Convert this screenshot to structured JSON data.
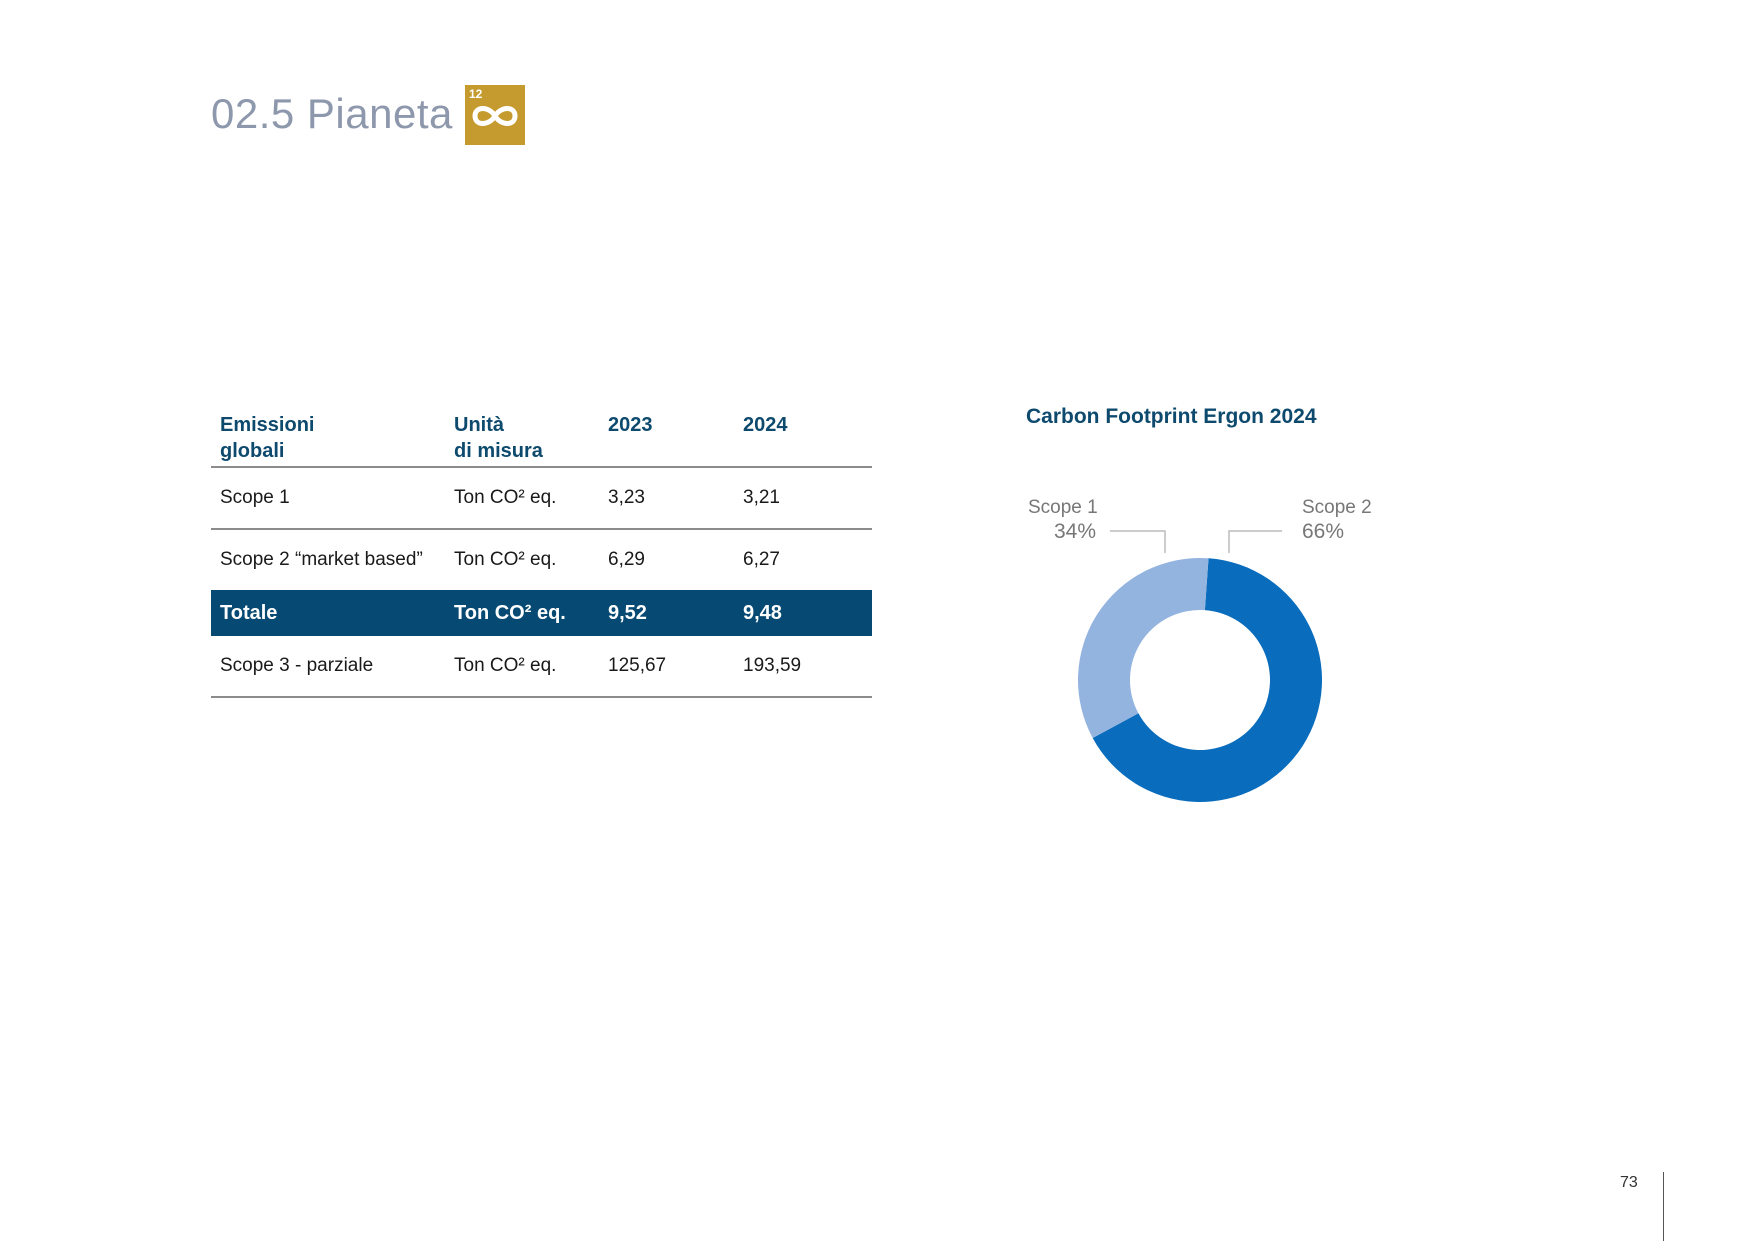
{
  "header": {
    "title": "02.5 Pianeta",
    "sdg_badge_number": "12",
    "sdg_badge_color": "#c59a2e"
  },
  "table": {
    "columns": [
      "Emissioni globali",
      "Unità di misura",
      "2023",
      "2024"
    ],
    "rows": [
      {
        "label": "Scope 1",
        "unit": "Ton CO² eq.",
        "v2023": "3,23",
        "v2024": "3,21"
      },
      {
        "label": "Scope 2 “market based”",
        "unit": "Ton CO² eq.",
        "v2023": "6,29",
        "v2024": "6,27"
      },
      {
        "label": "Totale",
        "unit": "Ton CO² eq.",
        "v2023": "9,52",
        "v2024": "9,48"
      },
      {
        "label": "Scope 3 - parziale",
        "unit": "Ton CO² eq.",
        "v2023": "125,67",
        "v2024": "193,59"
      }
    ],
    "total_row_color": "#064a73"
  },
  "chart_data": {
    "type": "pie",
    "title": "Carbon Footprint Ergon 2024",
    "donut": true,
    "labels": [
      "Scope 1",
      "Scope 2"
    ],
    "values": [
      34,
      66
    ],
    "value_labels": [
      "34%",
      "66%"
    ],
    "colors": [
      "#94b4e0",
      "#0a6cbc"
    ]
  },
  "footer": {
    "page_number": "73"
  }
}
